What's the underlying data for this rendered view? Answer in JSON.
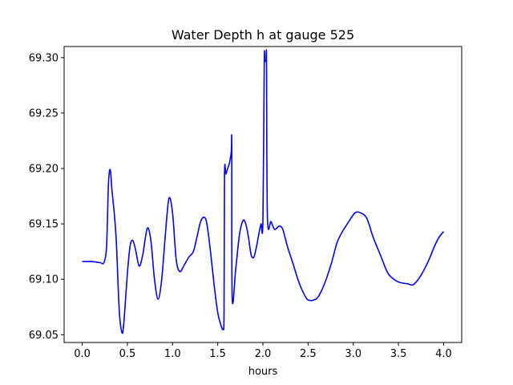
{
  "chart_data": {
    "type": "line",
    "title": "Water Depth h at gauge 525",
    "xlabel": "hours",
    "ylabel": "",
    "xlim": [
      -0.2,
      4.2
    ],
    "ylim": [
      69.043,
      69.31
    ],
    "xticks": [
      0.0,
      0.5,
      1.0,
      1.5,
      2.0,
      2.5,
      3.0,
      3.5,
      4.0
    ],
    "xtick_labels": [
      "0.0",
      "0.5",
      "1.0",
      "1.5",
      "2.0",
      "2.5",
      "3.0",
      "3.5",
      "4.0"
    ],
    "yticks": [
      69.05,
      69.1,
      69.15,
      69.2,
      69.25,
      69.3
    ],
    "ytick_labels": [
      "69.05",
      "69.10",
      "69.15",
      "69.20",
      "69.25",
      "69.30"
    ],
    "grid": false,
    "series": [
      {
        "color": "#0000ff",
        "x": [
          0.0,
          0.1,
          0.2,
          0.24,
          0.27,
          0.29,
          0.31,
          0.33,
          0.36,
          0.38,
          0.41,
          0.44,
          0.46,
          0.5,
          0.53,
          0.56,
          0.59,
          0.63,
          0.67,
          0.72,
          0.76,
          0.8,
          0.84,
          0.88,
          0.92,
          0.96,
          1.0,
          1.04,
          1.08,
          1.13,
          1.18,
          1.23,
          1.27,
          1.31,
          1.35,
          1.38,
          1.42,
          1.46,
          1.5,
          1.53,
          1.56,
          1.57,
          1.575,
          1.59,
          1.61,
          1.63,
          1.65,
          1.655,
          1.66,
          1.7,
          1.74,
          1.78,
          1.81,
          1.84,
          1.87,
          1.9,
          1.93,
          1.96,
          1.98,
          2.0,
          2.015,
          2.02,
          2.025,
          2.03,
          2.035,
          2.04,
          2.05,
          2.09,
          2.13,
          2.18,
          2.22,
          2.27,
          2.33,
          2.4,
          2.48,
          2.52,
          2.55,
          2.6,
          2.65,
          2.7,
          2.76,
          2.82,
          2.88,
          2.95,
          3.02,
          3.08,
          3.15,
          3.22,
          3.3,
          3.38,
          3.45,
          3.52,
          3.6,
          3.66,
          3.72,
          3.78,
          3.84,
          3.9,
          3.95,
          4.0
        ],
        "y": [
          69.116,
          69.116,
          69.115,
          69.115,
          69.13,
          69.185,
          69.199,
          69.18,
          69.155,
          69.13,
          69.072,
          69.052,
          69.06,
          69.105,
          69.13,
          69.135,
          69.127,
          69.112,
          69.122,
          69.146,
          69.135,
          69.1,
          69.082,
          69.1,
          69.14,
          69.173,
          69.16,
          69.118,
          69.107,
          69.113,
          69.12,
          69.125,
          69.138,
          69.152,
          69.156,
          69.15,
          69.125,
          69.095,
          69.07,
          69.06,
          69.055,
          69.07,
          69.195,
          69.195,
          69.2,
          69.205,
          69.215,
          69.222,
          69.083,
          69.11,
          69.14,
          69.153,
          69.15,
          69.138,
          69.122,
          69.12,
          69.13,
          69.143,
          69.15,
          69.152,
          69.296,
          69.296,
          69.297,
          69.297,
          69.297,
          69.297,
          69.156,
          69.152,
          69.145,
          69.148,
          69.145,
          69.13,
          69.115,
          69.097,
          69.083,
          69.081,
          69.081,
          69.083,
          69.09,
          69.1,
          69.115,
          69.133,
          69.143,
          69.152,
          69.16,
          69.16,
          69.155,
          69.138,
          69.122,
          69.106,
          69.1,
          69.097,
          69.096,
          69.095,
          69.1,
          69.108,
          69.118,
          69.13,
          69.138,
          69.143
        ]
      }
    ]
  }
}
